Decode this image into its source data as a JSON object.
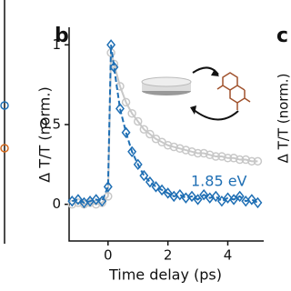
{
  "chart_data": {
    "type": "line",
    "panel_label": "b",
    "next_panel_label": "c",
    "next_panel_ylabel": "Δ T/T (norm.)",
    "xlabel": "Time delay (ps)",
    "ylabel": "Δ T/T (norm.)",
    "annotation": "1.85 eV",
    "x": [
      -1.2,
      -1.0,
      -0.8,
      -0.6,
      -0.4,
      -0.2,
      0,
      0.1,
      0.2,
      0.4,
      0.6,
      0.8,
      1.0,
      1.2,
      1.4,
      1.6,
      1.8,
      2.0,
      2.2,
      2.4,
      2.6,
      2.8,
      3.0,
      3.2,
      3.4,
      3.6,
      3.8,
      4.0,
      4.2,
      4.4,
      4.6,
      4.8,
      5.0
    ],
    "series": [
      {
        "color": "#c8c8c8",
        "marker": "circle",
        "values": [
          0,
          0.01,
          0,
          0.01,
          0,
          0.01,
          0.05,
          0.95,
          0.88,
          0.74,
          0.64,
          0.57,
          0.52,
          0.47,
          0.44,
          0.41,
          0.39,
          0.37,
          0.36,
          0.35,
          0.34,
          0.33,
          0.32,
          0.32,
          0.31,
          0.3,
          0.3,
          0.29,
          0.29,
          0.28,
          0.28,
          0.27,
          0.27
        ]
      },
      {
        "color": "#1f6fb4",
        "marker": "diamond",
        "values": [
          0.02,
          0.03,
          0.01,
          0.02,
          0.03,
          0.02,
          0.11,
          1.0,
          0.86,
          0.6,
          0.45,
          0.33,
          0.25,
          0.18,
          0.14,
          0.11,
          0.09,
          0.07,
          0.05,
          0.06,
          0.04,
          0.05,
          0.03,
          0.06,
          0.04,
          0.05,
          0.02,
          0.04,
          0.03,
          0.05,
          0.02,
          0.03,
          0.01
        ]
      }
    ],
    "xlim": [
      -1.3,
      5.2
    ],
    "xticks": [
      0,
      2,
      4
    ],
    "ylim": [
      -0.23,
      1.11
    ],
    "yticks": [
      0,
      0.5,
      1
    ]
  }
}
